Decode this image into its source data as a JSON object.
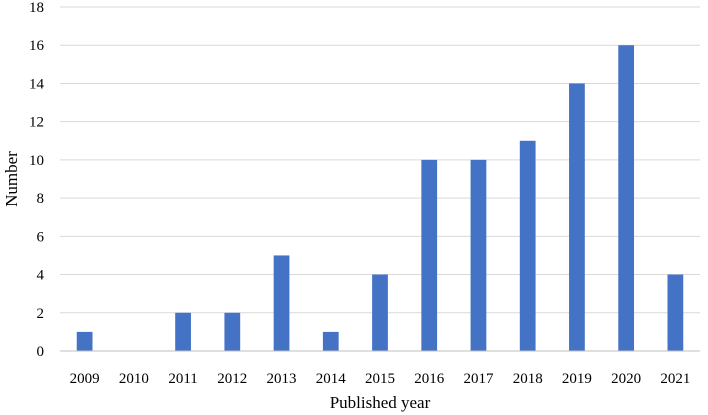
{
  "chart_data": {
    "type": "bar",
    "categories": [
      "2009",
      "2010",
      "2011",
      "2012",
      "2013",
      "2014",
      "2015",
      "2016",
      "2017",
      "2018",
      "2019",
      "2020",
      "2021"
    ],
    "values": [
      1,
      0,
      2,
      2,
      5,
      1,
      4,
      10,
      10,
      11,
      14,
      16,
      4
    ],
    "title": "",
    "xlabel": "Published year",
    "ylabel": "Number",
    "ylim": [
      0,
      18
    ],
    "yticks": [
      "0",
      "2",
      "4",
      "6",
      "8",
      "10",
      "12",
      "14",
      "16",
      "18"
    ],
    "grid": true,
    "legend": "none",
    "bar_color": "#4472c4"
  }
}
